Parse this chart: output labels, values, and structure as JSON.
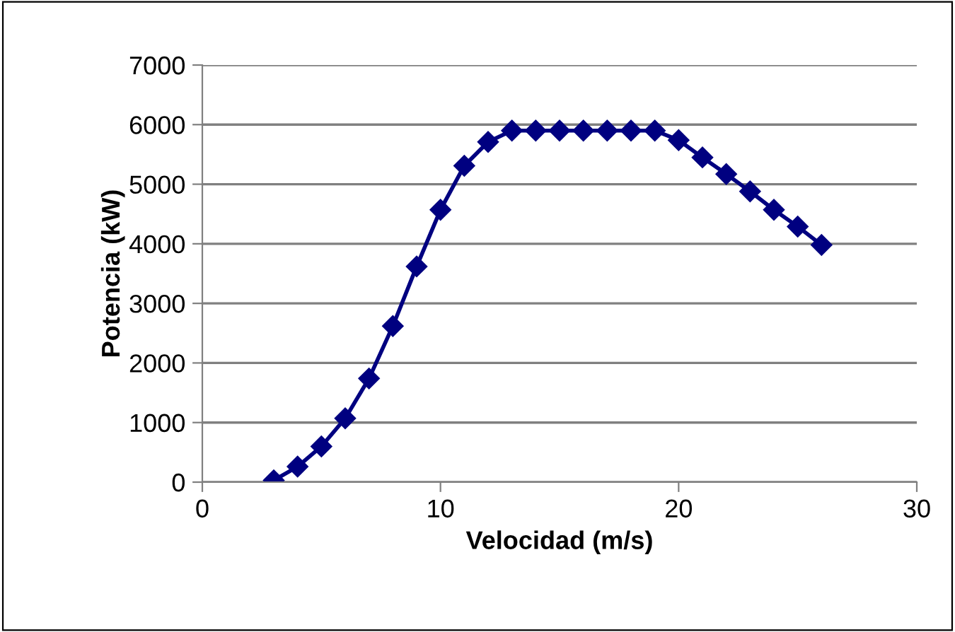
{
  "chart_data": {
    "type": "line",
    "xlabel": "Velocidad (m/s)",
    "ylabel": "Potencia (kW)",
    "x": [
      3,
      4,
      5,
      6,
      7,
      8,
      9,
      10,
      11,
      12,
      13,
      14,
      15,
      16,
      17,
      18,
      19,
      20,
      21,
      22,
      23,
      24,
      25,
      26
    ],
    "series": [
      {
        "color": "#000080",
        "values": [
          30,
          260,
          600,
          1070,
          1740,
          2620,
          3620,
          4570,
          5310,
          5710,
          5900,
          5900,
          5900,
          5900,
          5900,
          5900,
          5900,
          5740,
          5450,
          5170,
          4880,
          4570,
          4290,
          3980
        ]
      }
    ],
    "xlim": [
      0,
      30
    ],
    "xticks": [
      0,
      10,
      20,
      30
    ],
    "ylim": [
      0,
      7000
    ],
    "yticks": [
      0,
      1000,
      2000,
      3000,
      4000,
      5000,
      6000,
      7000
    ],
    "grid": "y",
    "marker": "diamond",
    "line_style": "solid",
    "legend": false
  }
}
